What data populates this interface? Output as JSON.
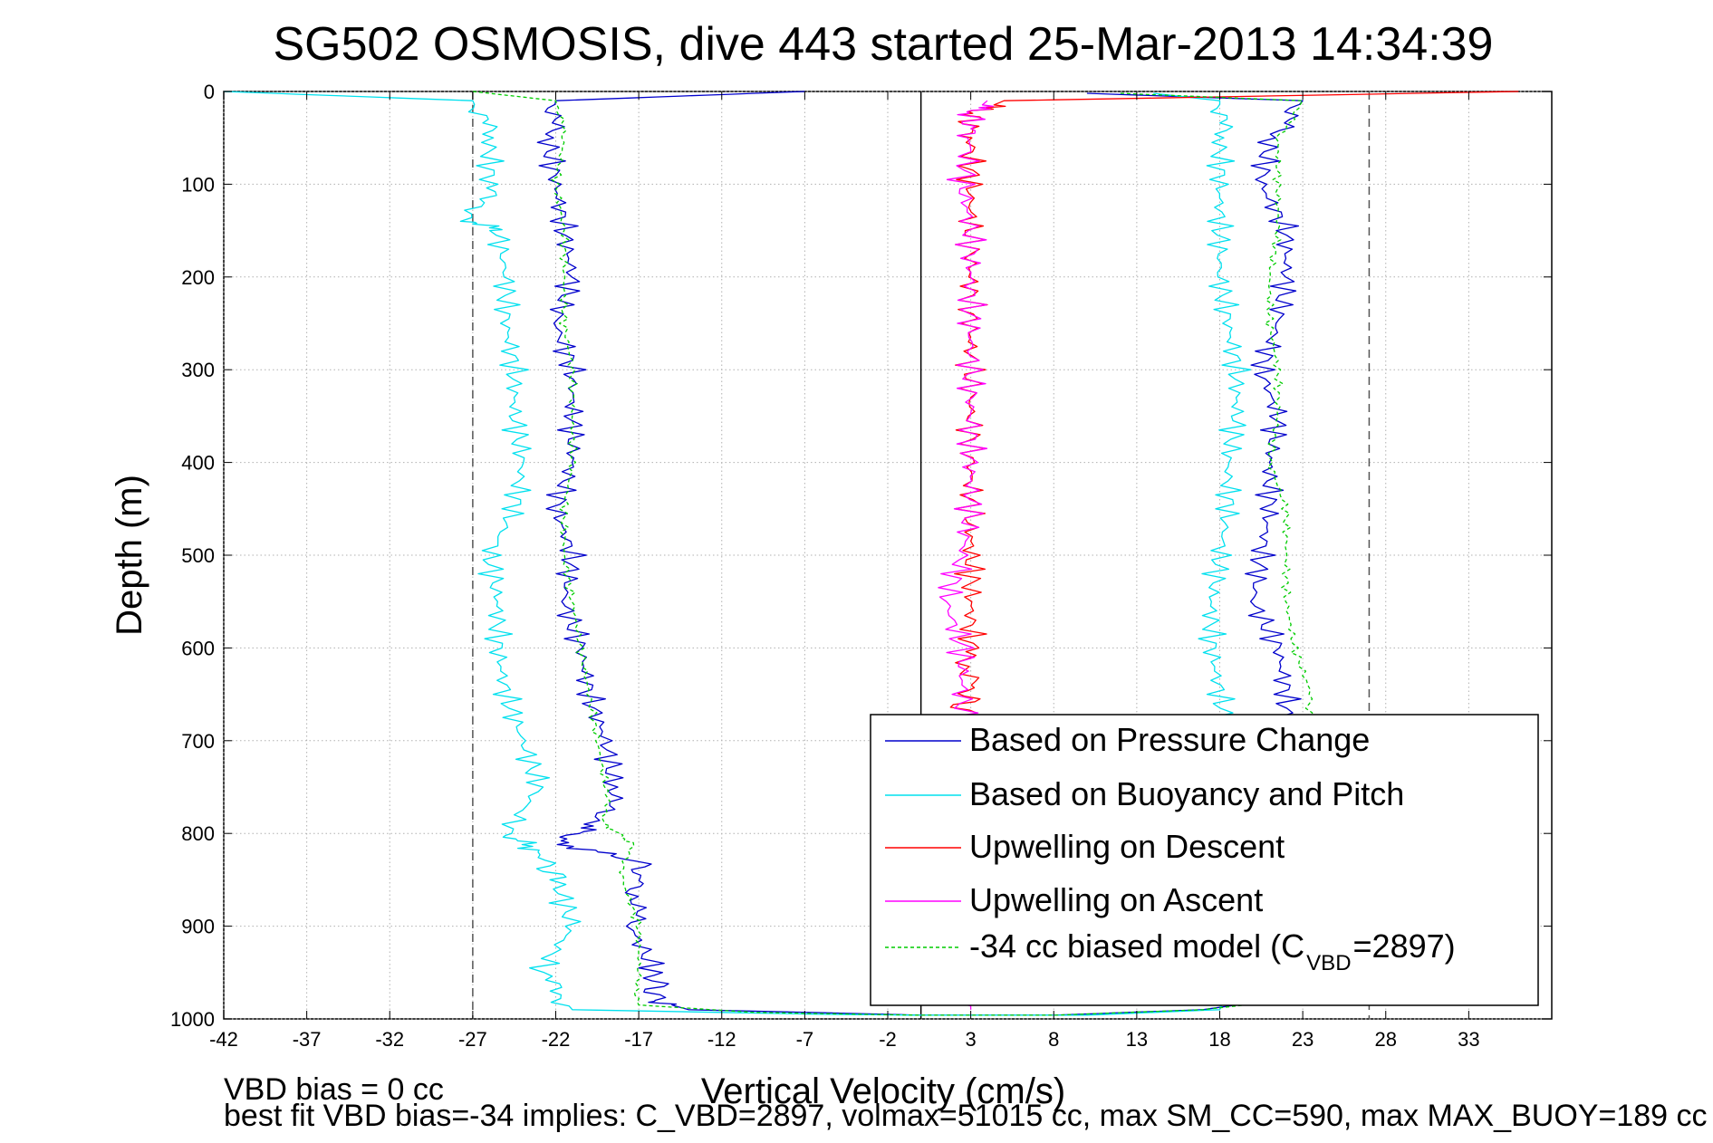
{
  "chart_data": {
    "type": "line",
    "title": "SG502 OSMOSIS, dive 443 started 25-Mar-2013 14:34:39",
    "xlabel": "Vertical Velocity (cm/s)",
    "ylabel": "Depth (m)",
    "xlim": [
      -42,
      38
    ],
    "ylim": [
      1000,
      0
    ],
    "y_reversed": true,
    "grid": true,
    "legend_position": "bottom-right",
    "x_ticks": [
      -42,
      -37,
      -32,
      -27,
      -22,
      -17,
      -12,
      -7,
      -2,
      3,
      8,
      13,
      18,
      23,
      28,
      33
    ],
    "y_ticks": [
      0,
      100,
      200,
      300,
      400,
      500,
      600,
      700,
      800,
      900,
      1000
    ],
    "reference_lines": [
      {
        "x": -27,
        "style": "dashed",
        "color": "#555555"
      },
      {
        "x": 0,
        "style": "solid",
        "color": "#000000"
      },
      {
        "x": 27,
        "style": "dashed",
        "color": "#555555"
      }
    ],
    "series": [
      {
        "name": "Based on Pressure Change",
        "color": "#0000cc",
        "points": [
          [
            -7,
            0
          ],
          [
            -22,
            10
          ],
          [
            -22.5,
            50
          ],
          [
            -22,
            100
          ],
          [
            -21.5,
            150
          ],
          [
            -21,
            200
          ],
          [
            -22,
            250
          ],
          [
            -21,
            300
          ],
          [
            -21,
            350
          ],
          [
            -21,
            400
          ],
          [
            -22,
            450
          ],
          [
            -21,
            500
          ],
          [
            -21.5,
            550
          ],
          [
            -20.5,
            600
          ],
          [
            -20,
            650
          ],
          [
            -19,
            700
          ],
          [
            -18.5,
            750
          ],
          [
            -19.5,
            790
          ],
          [
            -22,
            810
          ],
          [
            -17,
            830
          ],
          [
            -17,
            860
          ],
          [
            -17.5,
            900
          ],
          [
            -16,
            950
          ],
          [
            -16,
            980
          ],
          [
            -14,
            990
          ],
          [
            -2,
            995
          ],
          [
            0,
            996
          ],
          [
            8,
            996
          ],
          [
            17,
            990
          ],
          [
            21,
            980
          ],
          [
            21,
            950
          ],
          [
            20.5,
            900
          ],
          [
            20.5,
            850
          ],
          [
            21,
            800
          ],
          [
            21.5,
            750
          ],
          [
            22,
            700
          ],
          [
            22,
            650
          ],
          [
            21.5,
            600
          ],
          [
            20,
            550
          ],
          [
            20.5,
            500
          ],
          [
            21,
            450
          ],
          [
            21,
            400
          ],
          [
            21.5,
            350
          ],
          [
            20.5,
            300
          ],
          [
            21.5,
            250
          ],
          [
            22,
            200
          ],
          [
            22,
            150
          ],
          [
            20.5,
            100
          ],
          [
            21,
            50
          ],
          [
            23,
            10
          ],
          [
            10,
            2
          ]
        ]
      },
      {
        "name": "Based on Buoyancy and Pitch",
        "color": "#00e0ee",
        "points": [
          [
            -42,
            0
          ],
          [
            -27,
            10
          ],
          [
            -26,
            50
          ],
          [
            -26,
            100
          ],
          [
            -27,
            140
          ],
          [
            -25.5,
            150
          ],
          [
            -25,
            200
          ],
          [
            -25,
            250
          ],
          [
            -24.5,
            300
          ],
          [
            -24.5,
            350
          ],
          [
            -24,
            400
          ],
          [
            -24.5,
            450
          ],
          [
            -26,
            500
          ],
          [
            -25.5,
            550
          ],
          [
            -25.5,
            600
          ],
          [
            -25,
            650
          ],
          [
            -24,
            700
          ],
          [
            -23,
            750
          ],
          [
            -25,
            800
          ],
          [
            -23,
            820
          ],
          [
            -22,
            850
          ],
          [
            -21,
            900
          ],
          [
            -23,
            950
          ],
          [
            -21,
            990
          ],
          [
            -6,
            995
          ],
          [
            0,
            996
          ],
          [
            10,
            996
          ],
          [
            18,
            990
          ],
          [
            19,
            950
          ],
          [
            19,
            900
          ],
          [
            18.5,
            850
          ],
          [
            18.5,
            800
          ],
          [
            18.5,
            750
          ],
          [
            18.5,
            700
          ],
          [
            18,
            650
          ],
          [
            17.5,
            600
          ],
          [
            17.5,
            550
          ],
          [
            18,
            500
          ],
          [
            18.5,
            450
          ],
          [
            18.5,
            400
          ],
          [
            19,
            350
          ],
          [
            19,
            300
          ],
          [
            18.5,
            250
          ],
          [
            18,
            200
          ],
          [
            18,
            150
          ],
          [
            18,
            100
          ],
          [
            18,
            50
          ],
          [
            18,
            10
          ],
          [
            14,
            2
          ]
        ]
      },
      {
        "name": "Upwelling on Descent",
        "color": "#ff0000",
        "points": [
          [
            36,
            0
          ],
          [
            5,
            10
          ],
          [
            3,
            25
          ],
          [
            3,
            50
          ],
          [
            3,
            100
          ],
          [
            3,
            150
          ],
          [
            3,
            200
          ],
          [
            3,
            250
          ],
          [
            3,
            300
          ],
          [
            3,
            350
          ],
          [
            3,
            400
          ],
          [
            3,
            450
          ],
          [
            3,
            500
          ],
          [
            3,
            550
          ],
          [
            3,
            600
          ],
          [
            3,
            640
          ],
          [
            2.5,
            670
          ]
        ]
      },
      {
        "name": "Upwelling on Ascent",
        "color": "#ff00ff",
        "points": [
          [
            3,
            990
          ],
          [
            3,
            950
          ],
          [
            3,
            900
          ],
          [
            3,
            850
          ],
          [
            2.5,
            800
          ],
          [
            2.5,
            750
          ],
          [
            2.5,
            700
          ],
          [
            2.5,
            650
          ],
          [
            2.5,
            600
          ],
          [
            1.5,
            550
          ],
          [
            2.5,
            500
          ],
          [
            3,
            450
          ],
          [
            3,
            400
          ],
          [
            3,
            350
          ],
          [
            3,
            300
          ],
          [
            3,
            250
          ],
          [
            3,
            200
          ],
          [
            3,
            150
          ],
          [
            2.5,
            100
          ],
          [
            3,
            50
          ],
          [
            3,
            25
          ],
          [
            4,
            10
          ]
        ]
      },
      {
        "name": "-34 cc biased model (C",
        "color": "#00cc00",
        "dash": true,
        "points": [
          [
            -27,
            0
          ],
          [
            -22,
            10
          ],
          [
            -21.5,
            50
          ],
          [
            -22,
            100
          ],
          [
            -21.5,
            150
          ],
          [
            -21.5,
            200
          ],
          [
            -21.5,
            250
          ],
          [
            -21,
            300
          ],
          [
            -21,
            350
          ],
          [
            -21,
            400
          ],
          [
            -21.5,
            450
          ],
          [
            -21.5,
            500
          ],
          [
            -21,
            550
          ],
          [
            -20.5,
            600
          ],
          [
            -20,
            650
          ],
          [
            -19.5,
            700
          ],
          [
            -19,
            750
          ],
          [
            -19,
            790
          ],
          [
            -17.5,
            810
          ],
          [
            -18,
            850
          ],
          [
            -17,
            900
          ],
          [
            -17,
            950
          ],
          [
            -17,
            985
          ],
          [
            -10,
            993
          ],
          [
            0,
            996
          ],
          [
            8,
            996
          ],
          [
            17,
            990
          ],
          [
            22,
            980
          ],
          [
            22,
            950
          ],
          [
            22,
            900
          ],
          [
            22,
            850
          ],
          [
            22,
            800
          ],
          [
            22.5,
            750
          ],
          [
            23,
            700
          ],
          [
            23.5,
            650
          ],
          [
            22.5,
            600
          ],
          [
            22,
            550
          ],
          [
            22,
            500
          ],
          [
            22,
            450
          ],
          [
            21,
            400
          ],
          [
            21.5,
            350
          ],
          [
            21.5,
            300
          ],
          [
            21,
            250
          ],
          [
            21,
            200
          ],
          [
            21.5,
            150
          ],
          [
            21.5,
            100
          ],
          [
            21.5,
            50
          ],
          [
            23,
            10
          ],
          [
            12,
            2
          ]
        ]
      }
    ],
    "legend": {
      "entries": [
        "Based on Pressure Change",
        "Based on Buoyancy and Pitch",
        "Upwelling on Descent",
        "Upwelling on Ascent",
        "-34 cc biased model (C"
      ],
      "model_subscript": "VBD",
      "model_suffix": "=2897)"
    },
    "annotations": {
      "vbd_bias": "VBD bias = 0 cc",
      "best_fit": "best fit VBD bias=-34 implies: C_VBD=2897, volmax=51015 cc, max SM_CC=590, max MAX_BUOY=189 cc"
    }
  }
}
